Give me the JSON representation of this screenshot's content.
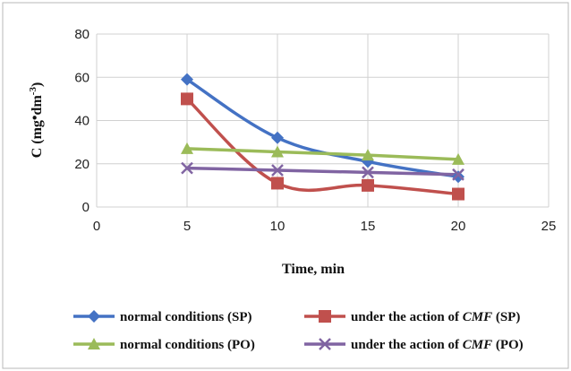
{
  "chart_data": {
    "type": "line",
    "title": "",
    "xlabel": "Time, min",
    "ylabel_parts": {
      "prefix": "C (mg",
      "middle": "dm",
      "superscript": "-3",
      "suffix": ")"
    },
    "xlim": [
      0,
      25
    ],
    "ylim": [
      0,
      80
    ],
    "x_ticks": [
      "0",
      "5",
      "10",
      "15",
      "20",
      "25"
    ],
    "y_ticks": [
      "0",
      "20",
      "40",
      "60",
      "80"
    ],
    "grid": "vertical and horizontal",
    "legend_position": "bottom",
    "x": [
      5,
      10,
      15,
      20
    ],
    "series": [
      {
        "name_prefix": "normal conditions (SP)",
        "name_italic": "",
        "name_suffix": "",
        "values": [
          59,
          32,
          21,
          14
        ],
        "color": "#4472C4",
        "marker": "diamond"
      },
      {
        "name_prefix": "under the action of ",
        "name_italic": "CMF",
        "name_suffix": " (SP)",
        "values": [
          50,
          11,
          10,
          6
        ],
        "color": "#C0504D",
        "marker": "square"
      },
      {
        "name_prefix": "normal conditions (PO)",
        "name_italic": "",
        "name_suffix": "",
        "values": [
          27,
          25.5,
          24,
          22
        ],
        "color": "#9BBB59",
        "marker": "triangle"
      },
      {
        "name_prefix": "under the action of ",
        "name_italic": "CMF",
        "name_suffix": " (PO)",
        "values": [
          18,
          17,
          16,
          15
        ],
        "color": "#8064A2",
        "marker": "x"
      }
    ]
  }
}
